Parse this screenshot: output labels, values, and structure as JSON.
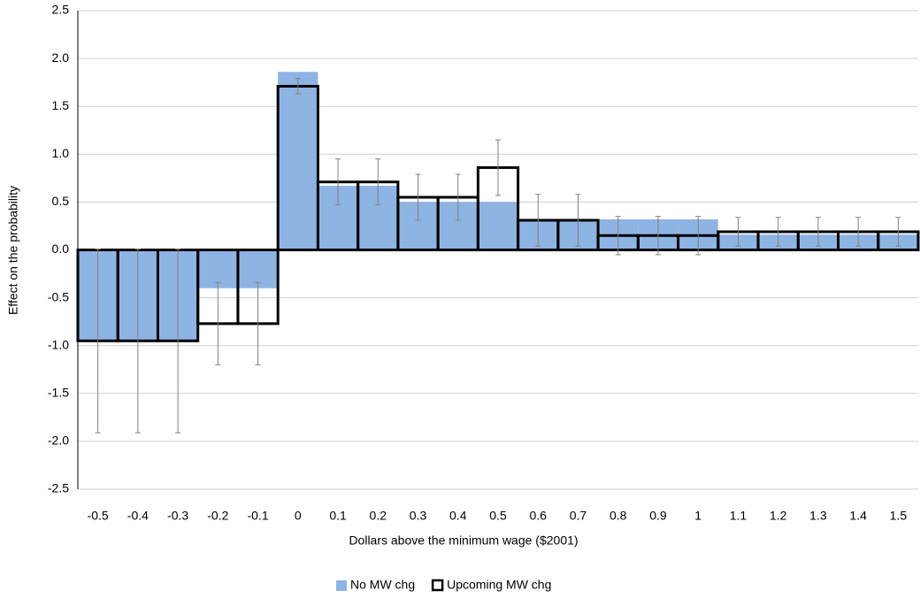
{
  "chart_data": {
    "type": "bar",
    "xlabel": "Dollars above the minimum wage ($2001)",
    "ylabel": "Effect on the probability",
    "categories": [
      "-0.5",
      "-0.4",
      "-0.3",
      "-0.2",
      "-0.1",
      "0",
      "0.1",
      "0.2",
      "0.3",
      "0.4",
      "0.5",
      "0.6",
      "0.7",
      "0.8",
      "0.9",
      "1",
      "1.1",
      "1.2",
      "1.3",
      "1.4",
      "1.5"
    ],
    "series": [
      {
        "name": "No MW chg",
        "color": "#8eb4e3",
        "style": "filled",
        "values": [
          -0.95,
          -0.95,
          -0.95,
          -0.4,
          -0.4,
          1.86,
          0.67,
          0.67,
          0.5,
          0.5,
          0.5,
          0.32,
          0.32,
          0.32,
          0.32,
          0.32,
          0.16,
          0.16,
          0.16,
          0.16,
          0.16
        ]
      },
      {
        "name": "Upcoming MW chg",
        "color": "#000000",
        "style": "outline",
        "values": [
          -0.95,
          -0.95,
          -0.95,
          -0.77,
          -0.77,
          1.71,
          0.71,
          0.71,
          0.55,
          0.55,
          0.86,
          0.31,
          0.31,
          0.15,
          0.15,
          0.15,
          0.19,
          0.19,
          0.19,
          0.19,
          0.19
        ],
        "errors": [
          0.96,
          0.96,
          0.96,
          0.43,
          0.43,
          0.08,
          0.24,
          0.24,
          0.24,
          0.24,
          0.29,
          0.27,
          0.27,
          0.2,
          0.2,
          0.2,
          0.15,
          0.15,
          0.15,
          0.15,
          0.15
        ]
      }
    ],
    "ylim": [
      -2.5,
      2.5
    ],
    "yticks": [
      {
        "value": -2.5,
        "label": "-2.5"
      },
      {
        "value": -2,
        "label": "-2.0"
      },
      {
        "value": -1.5,
        "label": "-1.5"
      },
      {
        "value": -1,
        "label": "-1.0"
      },
      {
        "value": -0.5,
        "label": "-0.5"
      },
      {
        "value": 0,
        "label": "0.0"
      },
      0.5,
      {
        "value": 1,
        "label": "1.0"
      },
      1.5,
      {
        "value": 2,
        "label": "2.0"
      },
      2.5
    ],
    "grid": true,
    "legend": "bottom"
  }
}
